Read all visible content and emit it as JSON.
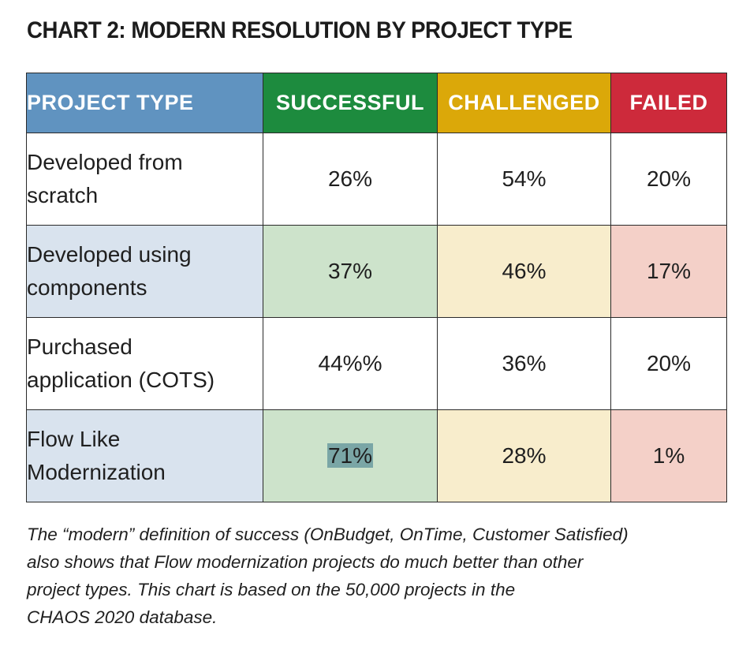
{
  "title": "CHART 2: MODERN RESOLUTION BY PROJECT TYPE",
  "table": {
    "headers": [
      "PROJECT TYPE",
      "SUCCESSFUL",
      "CHALLENGED",
      "FAILED"
    ],
    "rows": [
      {
        "label_line1": "Developed from",
        "label_line2": "scratch",
        "successful": "26%",
        "challenged": "54%",
        "failed": "20%"
      },
      {
        "label_line1": "Developed using",
        "label_line2": "components",
        "successful": "37%",
        "challenged": "46%",
        "failed": "17%"
      },
      {
        "label_line1": "Purchased",
        "label_line2": "application (COTS)",
        "successful": "44%%",
        "challenged": "36%",
        "failed": "20%"
      },
      {
        "label_line1": "Flow Like",
        "label_line2": "Modernization",
        "successful": "71%",
        "challenged": "28%",
        "failed": "1%"
      }
    ]
  },
  "caption": {
    "line1": "The “modern” definition of success (OnBudget, OnTime, Customer Satisfied)",
    "line2": "also shows that Flow modernization projects do much better than other",
    "line3": "project types. This chart is based on the 50,000 projects in the",
    "line4": "CHAOS 2020 database."
  },
  "colors": {
    "project_type_header": "#6093c0",
    "successful_header": "#1d8b3e",
    "challenged_header": "#dba809",
    "failed_header": "#cd2a3b",
    "highlight": "#7aa6a6"
  }
}
